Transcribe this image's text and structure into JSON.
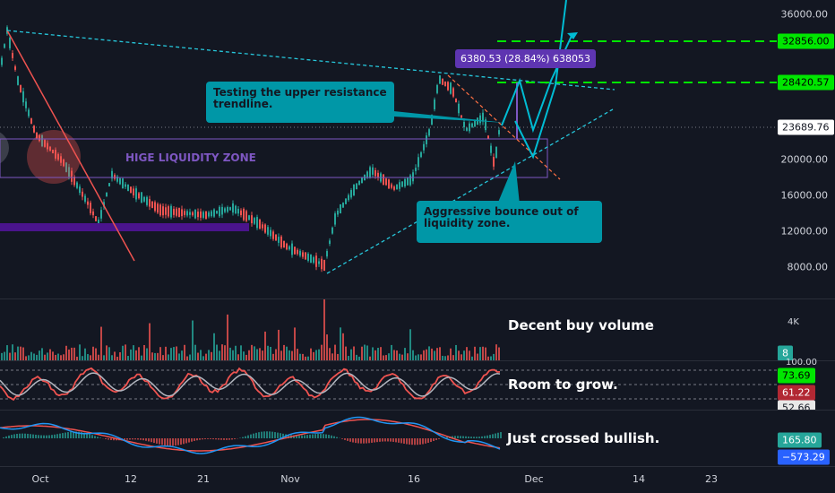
{
  "price_axis": {
    "ticks": [
      "36000.00",
      "32856.00",
      "28420.57",
      "23689.76",
      "20000.00",
      "16000.00",
      "12000.00",
      "8000.00"
    ],
    "current_price": "23689.76",
    "target_1": "32856.00",
    "target_2": "28420.57"
  },
  "annotations": {
    "resistance_callout": "Testing the upper resistance trendline.",
    "bounce_callout": "Aggressive bounce out of liquidity zone.",
    "zone_label": "HIGE LIQUIDITY ZONE",
    "measure_label": "6380.53 (28.84%) 638053"
  },
  "volume_pane": {
    "note": "Decent buy volume",
    "axis_label": "4K",
    "value_tag": "8"
  },
  "rsi_pane": {
    "note": "Room to grow.",
    "tags": [
      "73.69",
      "61.22",
      "52.66"
    ],
    "top_label": "100.00"
  },
  "macd_pane": {
    "note": "Just crossed bullish.",
    "tags": [
      "165.80",
      "−573.29"
    ]
  },
  "time_axis": {
    "labels": [
      "Oct",
      "12",
      "21",
      "Nov",
      "16",
      "Dec",
      "14",
      "23"
    ]
  },
  "colors": {
    "background": "#131722",
    "bull": "#26a69a",
    "bear": "#ef5350",
    "projection": "#00bcd4",
    "target_lines": "#00e600",
    "zone": "#7e57c2"
  }
}
